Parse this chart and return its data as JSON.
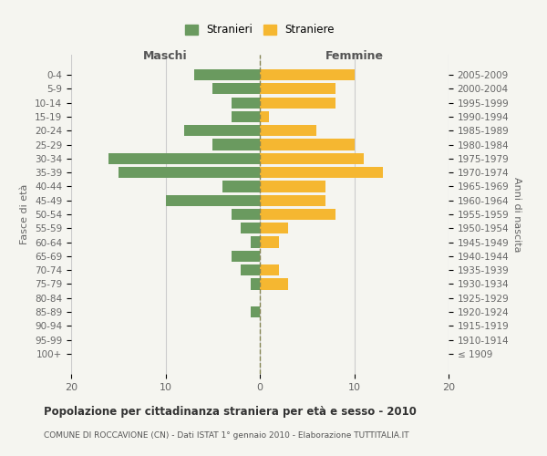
{
  "age_groups": [
    "100+",
    "95-99",
    "90-94",
    "85-89",
    "80-84",
    "75-79",
    "70-74",
    "65-69",
    "60-64",
    "55-59",
    "50-54",
    "45-49",
    "40-44",
    "35-39",
    "30-34",
    "25-29",
    "20-24",
    "15-19",
    "10-14",
    "5-9",
    "0-4"
  ],
  "birth_years": [
    "≤ 1909",
    "1910-1914",
    "1915-1919",
    "1920-1924",
    "1925-1929",
    "1930-1934",
    "1935-1939",
    "1940-1944",
    "1945-1949",
    "1950-1954",
    "1955-1959",
    "1960-1964",
    "1965-1969",
    "1970-1974",
    "1975-1979",
    "1980-1984",
    "1985-1989",
    "1990-1994",
    "1995-1999",
    "2000-2004",
    "2005-2009"
  ],
  "males": [
    0,
    0,
    0,
    1,
    0,
    1,
    2,
    3,
    1,
    2,
    3,
    10,
    4,
    15,
    16,
    5,
    8,
    3,
    3,
    5,
    7
  ],
  "females": [
    0,
    0,
    0,
    0,
    0,
    3,
    2,
    0,
    2,
    3,
    8,
    7,
    7,
    13,
    11,
    10,
    6,
    1,
    8,
    8,
    10
  ],
  "male_color": "#6a9a5f",
  "female_color": "#f5b731",
  "background_color": "#f5f5f0",
  "grid_color": "#cccccc",
  "dashed_line_color": "#888855",
  "title": "Popolazione per cittadinanza straniera per età e sesso - 2010",
  "subtitle": "COMUNE DI ROCCAVIONE (CN) - Dati ISTAT 1° gennaio 2010 - Elaborazione TUTTITALIA.IT",
  "ylabel_left": "Fasce di età",
  "ylabel_right": "Anni di nascita",
  "header_left": "Maschi",
  "header_right": "Femmine",
  "legend_stranieri": "Stranieri",
  "legend_straniere": "Straniere",
  "xlim": 20,
  "bar_height": 0.8
}
